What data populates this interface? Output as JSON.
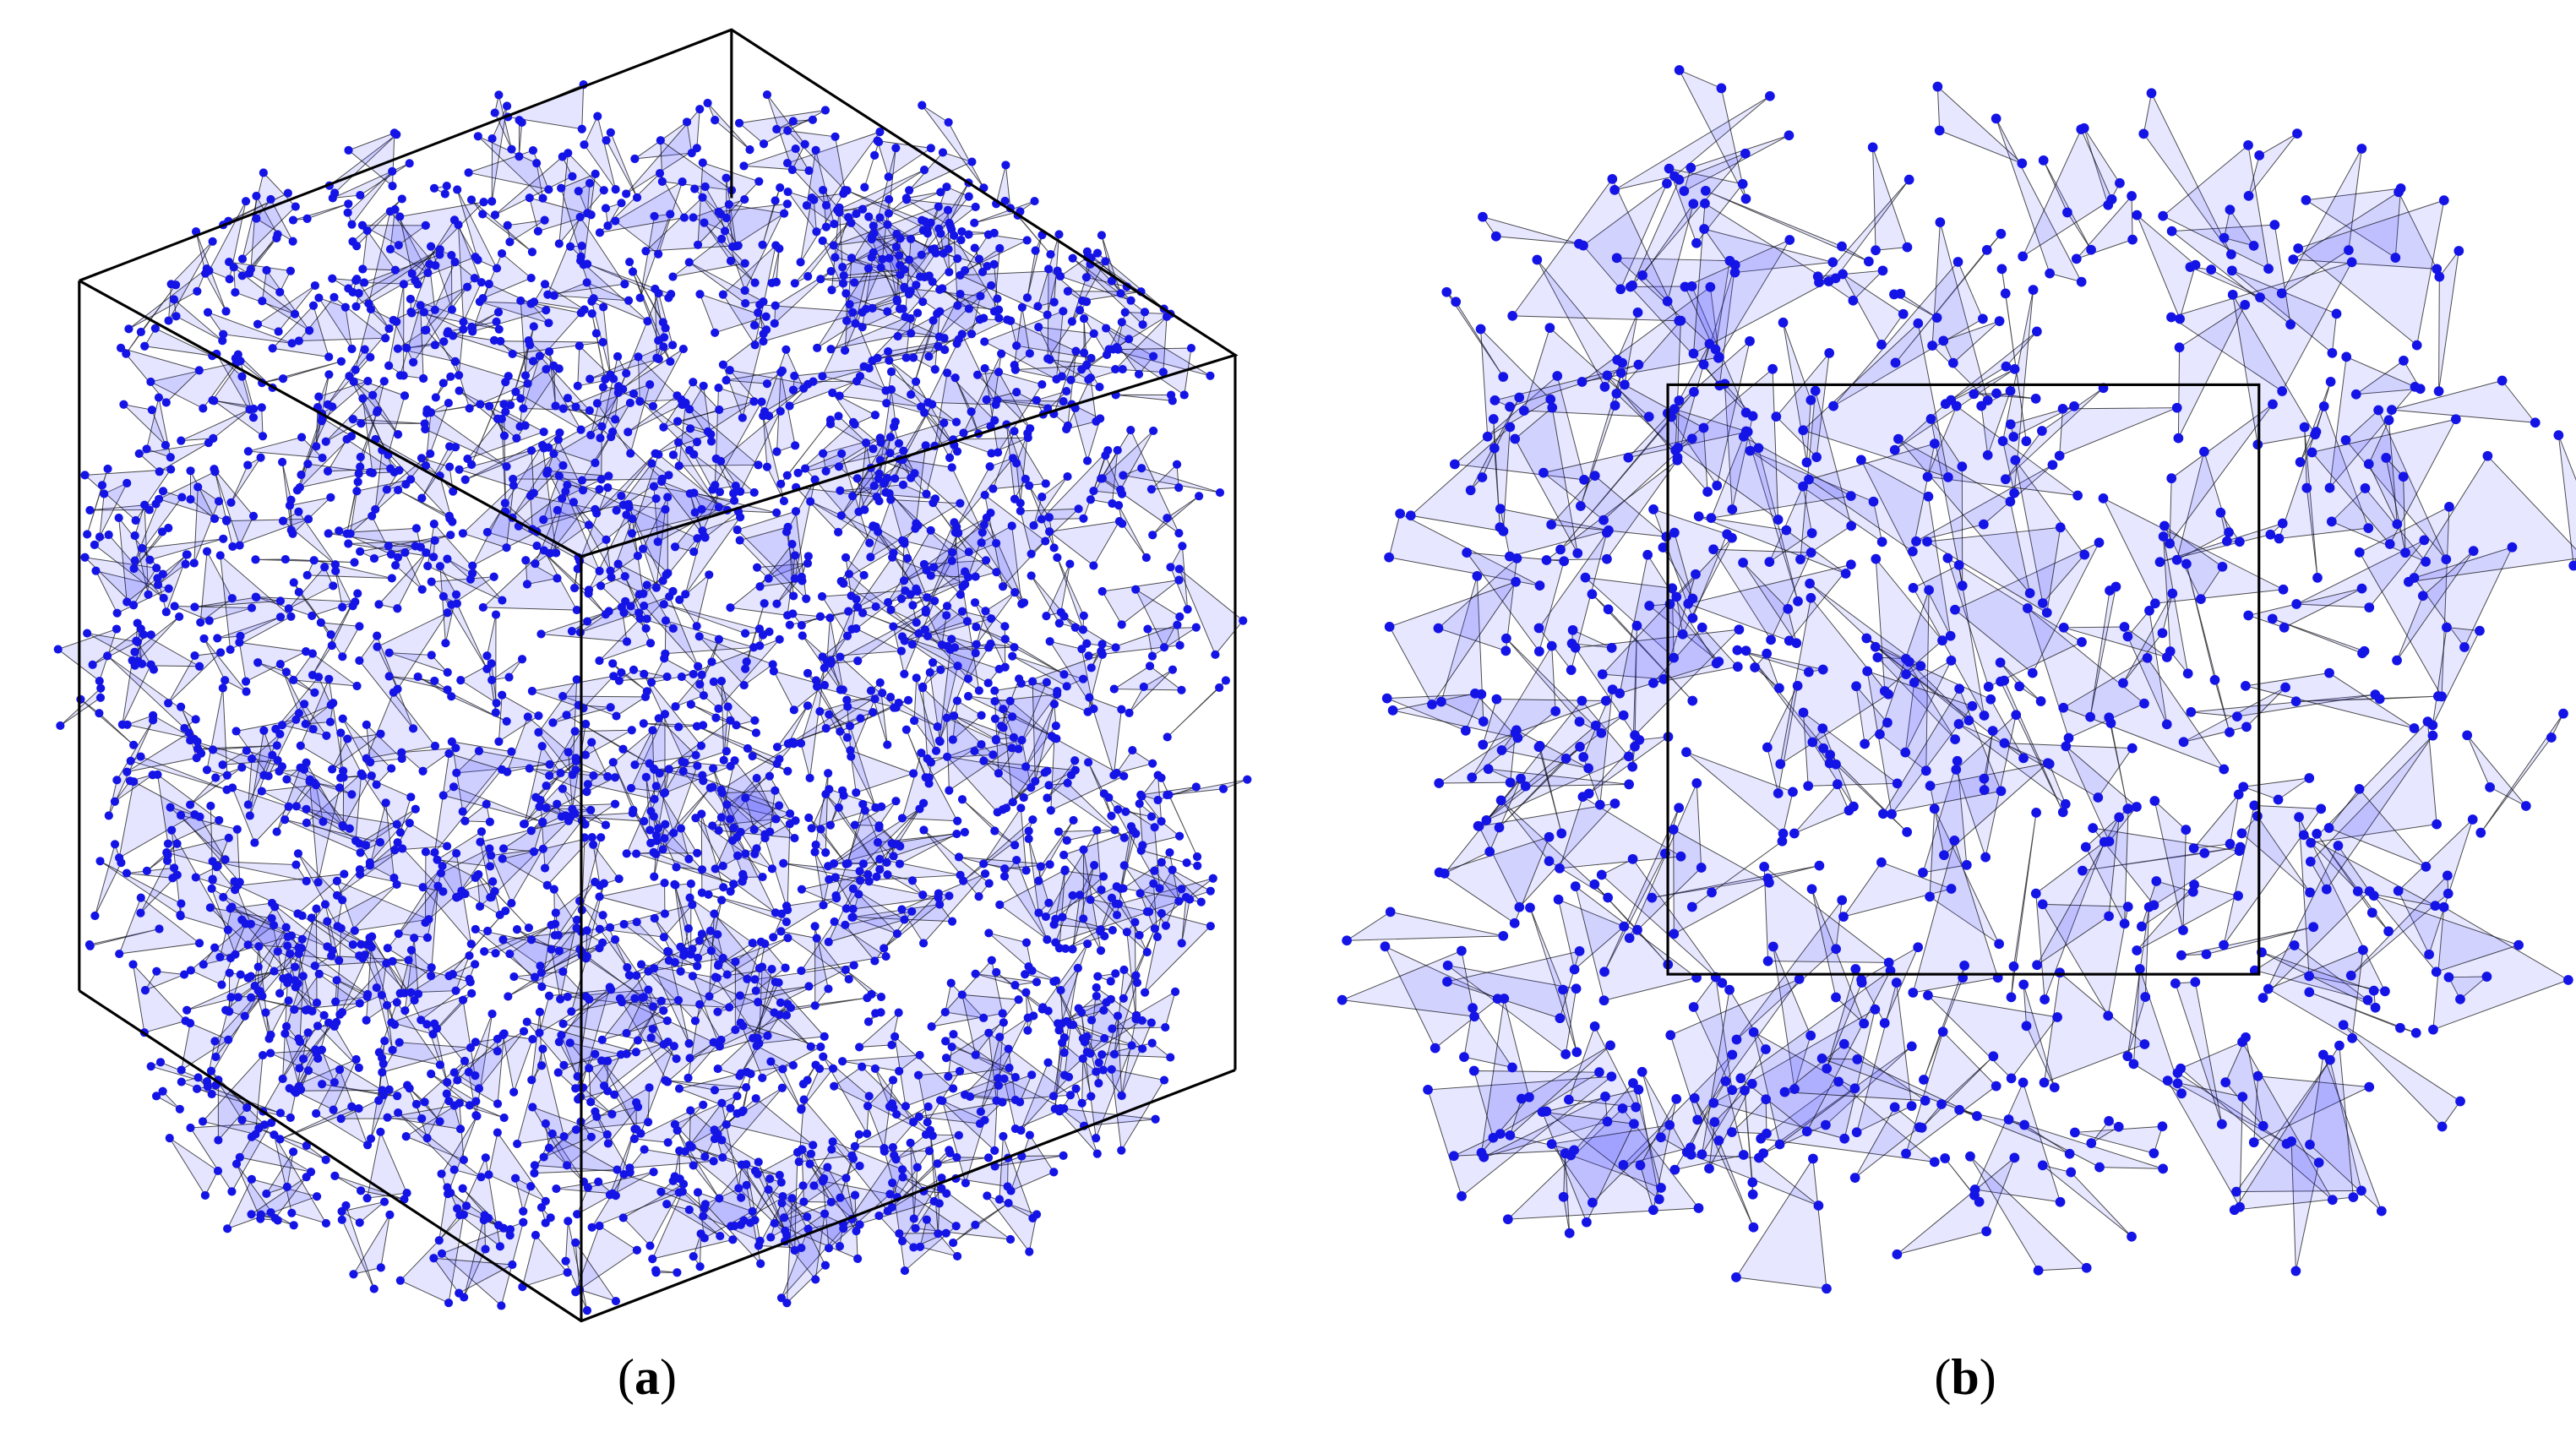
{
  "panels": [
    {
      "label": {
        "open": "(",
        "letter": "a",
        "close": ")"
      }
    },
    {
      "label": {
        "open": "(",
        "letter": "b",
        "close": ")"
      }
    }
  ]
}
